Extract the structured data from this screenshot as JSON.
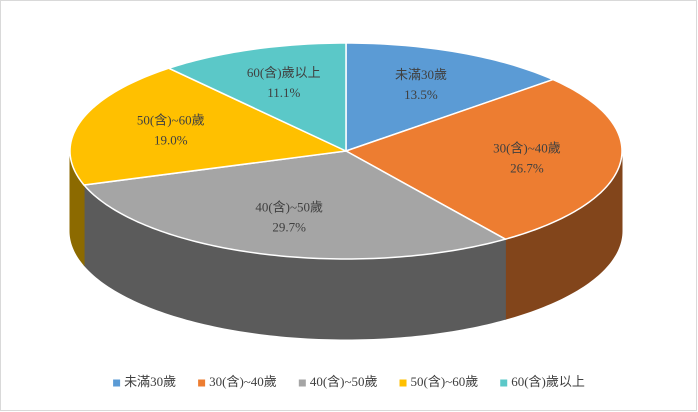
{
  "chart_data": {
    "type": "pie3d",
    "categories": [
      "未滿30歲",
      "30(含)~40歲",
      "40(含)~50歲",
      "50(含)~60歲",
      "60(含)歲以上"
    ],
    "values": [
      13.5,
      26.7,
      29.7,
      19.0,
      11.1
    ],
    "value_labels": [
      "13.5%",
      "26.7%",
      "29.7%",
      "19.0%",
      "11.1%"
    ],
    "colors": [
      "#5b9bd5",
      "#ed7d31",
      "#a5a5a5",
      "#ffc000",
      "#5bc8c8"
    ],
    "legend": "bottom"
  }
}
